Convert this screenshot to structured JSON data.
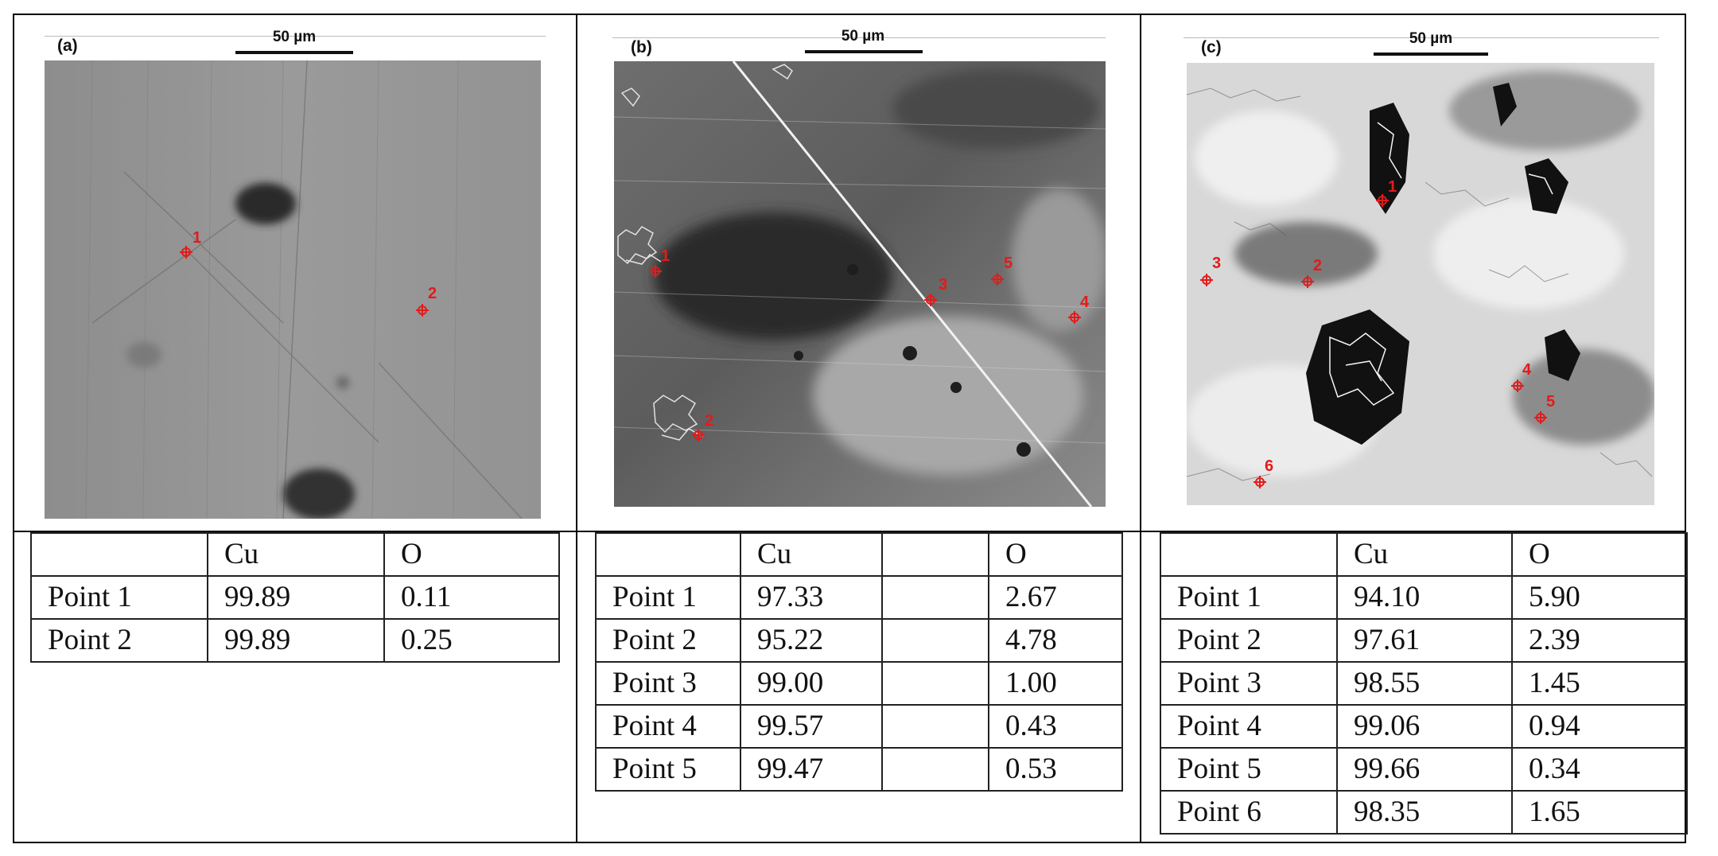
{
  "figure": {
    "panels": [
      {
        "label": "(a)",
        "scale_bar": "50 µm",
        "points": [
          {
            "label": "1"
          },
          {
            "label": "2"
          }
        ],
        "table": {
          "headers": [
            "",
            "Cu",
            "O"
          ],
          "rows": [
            [
              "Point 1",
              "99.89",
              "0.11"
            ],
            [
              "Point 2",
              "99.89",
              "0.25"
            ]
          ]
        }
      },
      {
        "label": "(b)",
        "scale_bar": "50 µm",
        "points": [
          {
            "label": "1"
          },
          {
            "label": "2"
          },
          {
            "label": "3"
          },
          {
            "label": "4"
          },
          {
            "label": "5"
          }
        ],
        "table": {
          "headers": [
            "",
            "Cu",
            "",
            "O"
          ],
          "rows": [
            [
              "Point 1",
              "97.33",
              "",
              "2.67"
            ],
            [
              "Point 2",
              "95.22",
              "",
              "4.78"
            ],
            [
              "Point 3",
              "99.00",
              "",
              "1.00"
            ],
            [
              "Point 4",
              "99.57",
              "",
              "0.43"
            ],
            [
              "Point 5",
              "99.47",
              "",
              "0.53"
            ]
          ]
        }
      },
      {
        "label": "(c)",
        "scale_bar": "50 µm",
        "points": [
          {
            "label": "1"
          },
          {
            "label": "2"
          },
          {
            "label": "3"
          },
          {
            "label": "4"
          },
          {
            "label": "5"
          },
          {
            "label": "6"
          }
        ],
        "table": {
          "headers": [
            "",
            "Cu",
            "O"
          ],
          "rows": [
            [
              "Point 1",
              "94.10",
              "5.90"
            ],
            [
              "Point 2",
              "97.61",
              "2.39"
            ],
            [
              "Point 3",
              "98.55",
              "1.45"
            ],
            [
              "Point 4",
              "99.06",
              "0.94"
            ],
            [
              "Point 5",
              "99.66",
              "0.34"
            ],
            [
              "Point 6",
              "98.35",
              "1.65"
            ]
          ]
        }
      }
    ],
    "marker_color": "#e21b1b"
  }
}
